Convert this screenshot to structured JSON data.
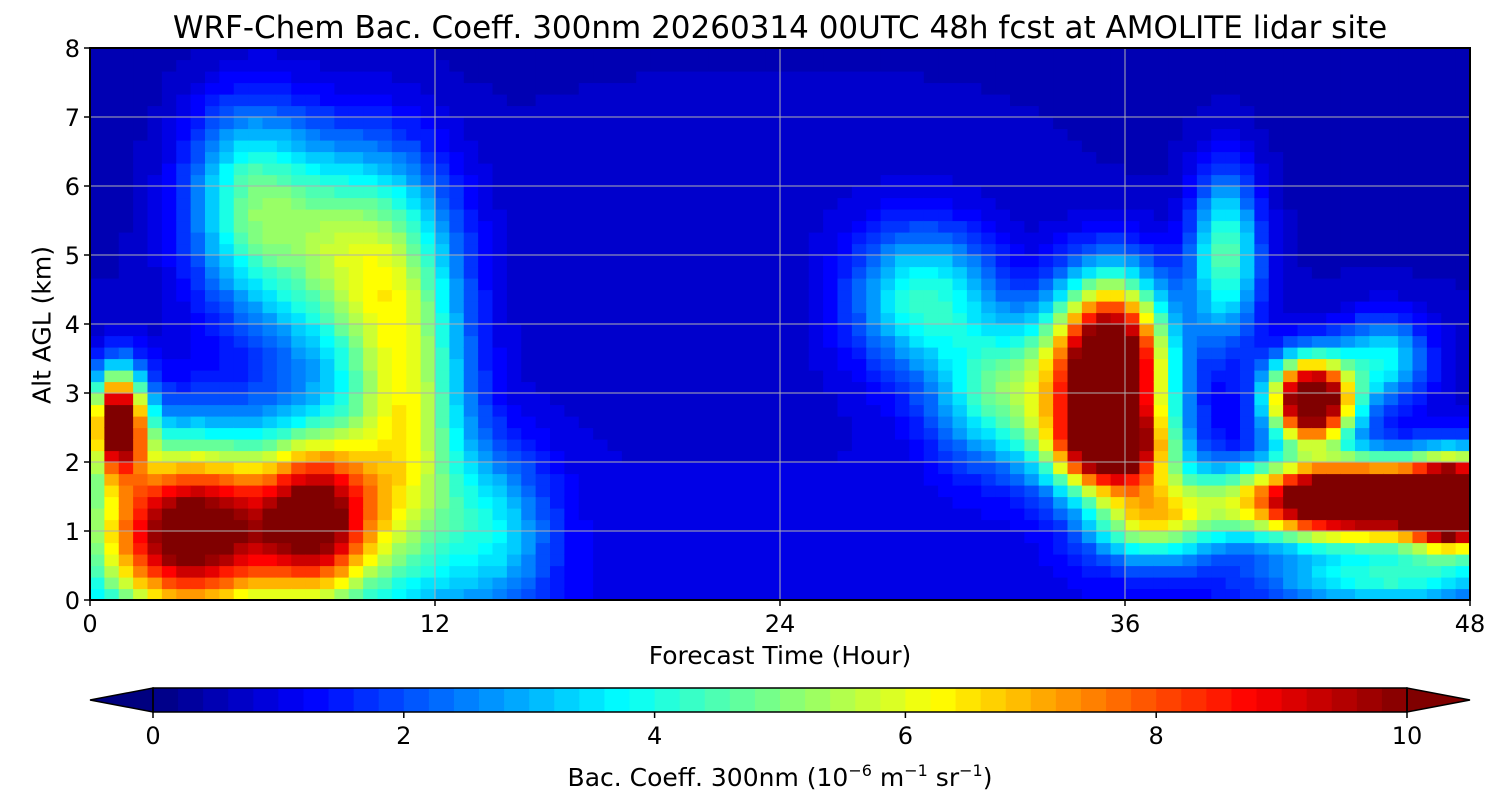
{
  "chart_data": {
    "type": "heatmap",
    "title": "WRF-Chem Bac. Coeff. 300nm  20260314 00UTC 48h fcst at AMOLITE lidar site",
    "xlabel": "Forecast Time (Hour)",
    "ylabel": "Alt AGL (km)",
    "xlim": [
      0,
      48
    ],
    "ylim": [
      0,
      8
    ],
    "x_ticks": [
      "0",
      "12",
      "24",
      "36",
      "48"
    ],
    "y_ticks": [
      "0",
      "1",
      "2",
      "3",
      "4",
      "5",
      "6",
      "7",
      "8"
    ],
    "grid": true,
    "colormap": "jet",
    "colorbar": {
      "label_main": "Bac. Coeff. 300nm  (10",
      "label_exp1": "−6",
      "label_mid": " m",
      "label_exp2": "−1",
      "label_mid2": " sr",
      "label_exp3": "−1",
      "label_end": ")",
      "ticks": [
        "0",
        "2",
        "4",
        "6",
        "8",
        "10"
      ],
      "range": [
        0,
        10
      ],
      "extend": "both",
      "placement": "bottom"
    },
    "features": [
      {
        "hour": 3.5,
        "alt": 1.0,
        "value": 10,
        "sx": 3.5,
        "sy": 1.3
      },
      {
        "hour": 1.0,
        "alt": 2.6,
        "value": 10,
        "sx": 0.9,
        "sy": 0.7
      },
      {
        "hour": 8.0,
        "alt": 1.2,
        "value": 8,
        "sx": 2.0,
        "sy": 1.2
      },
      {
        "hour": 11.0,
        "alt": 2.5,
        "value": 5,
        "sx": 2.0,
        "sy": 2.5
      },
      {
        "hour": 9.0,
        "alt": 5.0,
        "value": 4.5,
        "sx": 3.0,
        "sy": 1.6
      },
      {
        "hour": 5.5,
        "alt": 5.8,
        "value": 3.5,
        "sx": 2.2,
        "sy": 1.4
      },
      {
        "hour": 14.0,
        "alt": 1.0,
        "value": 2.5,
        "sx": 2.0,
        "sy": 1.2
      },
      {
        "hour": 29.0,
        "alt": 4.4,
        "value": 3.5,
        "sx": 2.5,
        "sy": 1.0
      },
      {
        "hour": 32.0,
        "alt": 3.0,
        "value": 4.0,
        "sx": 2.5,
        "sy": 1.0
      },
      {
        "hour": 35.5,
        "alt": 3.4,
        "value": 12,
        "sx": 1.9,
        "sy": 1.2
      },
      {
        "hour": 35.5,
        "alt": 2.2,
        "value": 8,
        "sx": 2.0,
        "sy": 0.6
      },
      {
        "hour": 37.0,
        "alt": 1.2,
        "value": 5,
        "sx": 2.2,
        "sy": 0.6
      },
      {
        "hour": 39.5,
        "alt": 5.0,
        "value": 4,
        "sx": 1.2,
        "sy": 1.2
      },
      {
        "hour": 42.5,
        "alt": 2.9,
        "value": 12,
        "sx": 1.4,
        "sy": 0.6
      },
      {
        "hour": 44.0,
        "alt": 1.45,
        "value": 13,
        "sx": 4.0,
        "sy": 0.55
      },
      {
        "hour": 47.5,
        "alt": 1.4,
        "value": 12,
        "sx": 1.5,
        "sy": 0.6
      },
      {
        "hour": 45.0,
        "alt": 0.3,
        "value": 3,
        "sx": 4.0,
        "sy": 0.4
      },
      {
        "hour": 45.0,
        "alt": 3.5,
        "value": 3,
        "sx": 1.5,
        "sy": 0.6
      },
      {
        "hour": 24.0,
        "alt": 6.5,
        "value": 0.3,
        "sx": 12.0,
        "sy": 1.5
      }
    ]
  }
}
